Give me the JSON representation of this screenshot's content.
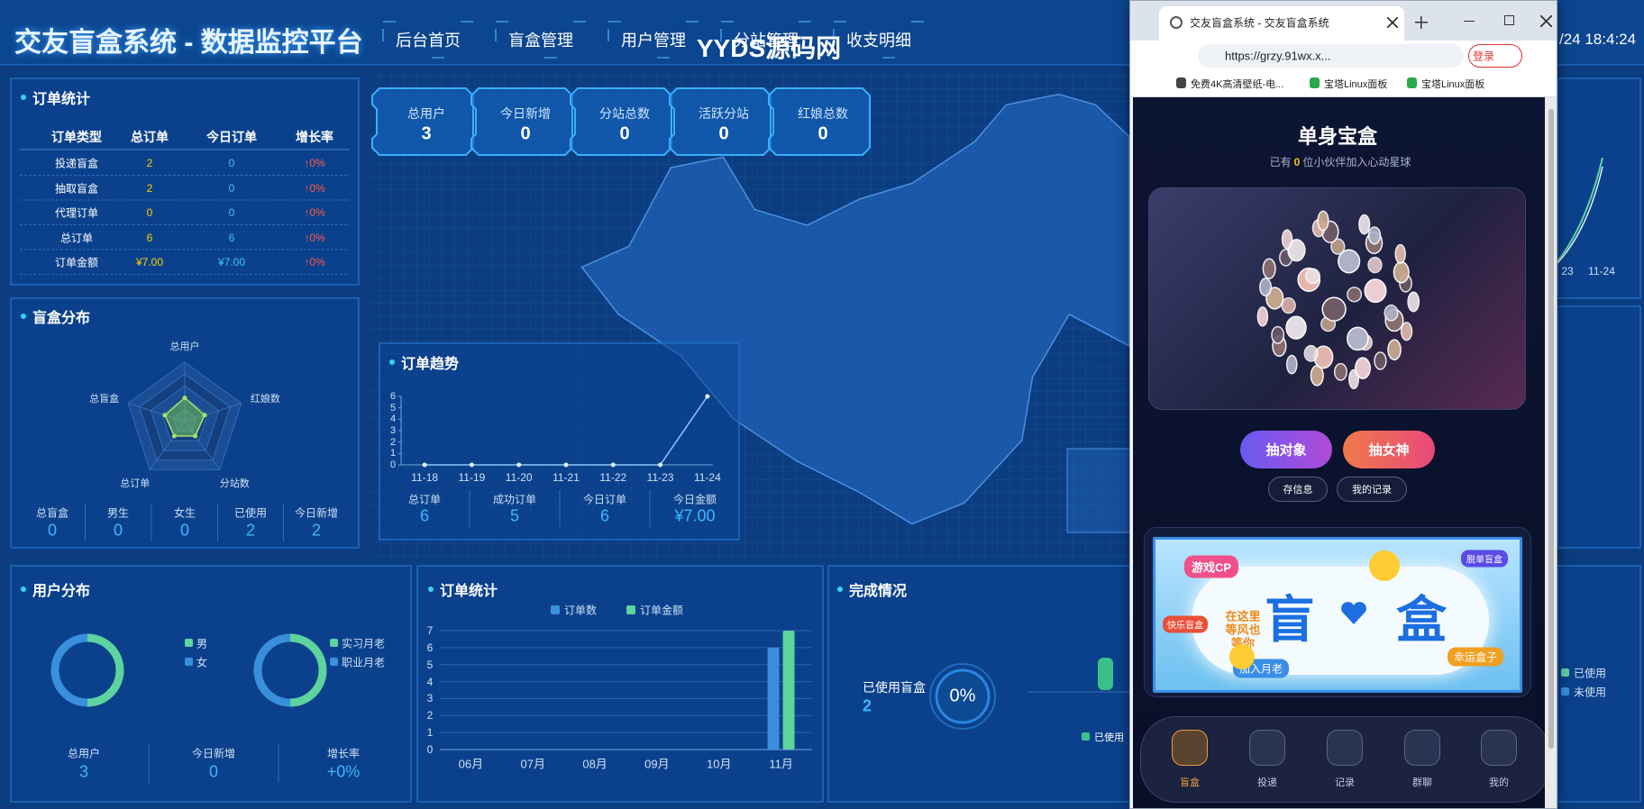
{
  "header": {
    "title": "交友盲盒系统 - 数据监控平台",
    "nav": [
      "后台首页",
      "盲盒管理",
      "用户管理",
      "分站管理",
      "收支明细"
    ],
    "watermark": "YYDS源码网",
    "clock": "/24 18:4:24"
  },
  "order_table": {
    "title": "订单统计",
    "columns": [
      "订单类型",
      "总订单",
      "今日订单",
      "增长率"
    ],
    "rows": [
      [
        "投递盲盒",
        "2",
        "0",
        "↑0%"
      ],
      [
        "抽取盲盒",
        "2",
        "0",
        "↑0%"
      ],
      [
        "代理订单",
        "0",
        "0",
        "↑0%"
      ],
      [
        "总订单",
        "6",
        "6",
        "↑0%"
      ],
      [
        "订单金额",
        "¥7.00",
        "¥7.00",
        "↑0%"
      ]
    ]
  },
  "kpis": [
    {
      "label": "总用户",
      "value": "3"
    },
    {
      "label": "今日新增",
      "value": "0"
    },
    {
      "label": "分站总数",
      "value": "0"
    },
    {
      "label": "活跃分站",
      "value": "0"
    },
    {
      "label": "红娘总数",
      "value": "0"
    }
  ],
  "box_distribution": {
    "title": "盲盒分布",
    "radar": {
      "type": "radar",
      "indicators": [
        "总用户",
        "红娘数",
        "分站数",
        "总订单",
        "总盲盒"
      ],
      "values": [
        4,
        3.5,
        3,
        3,
        3.5
      ],
      "rlim": [
        0,
        10
      ],
      "color": "#a8e06a"
    },
    "stats": [
      {
        "label": "总盲盒",
        "value": "0"
      },
      {
        "label": "男生",
        "value": "0"
      },
      {
        "label": "女生",
        "value": "0"
      },
      {
        "label": "已使用",
        "value": "2"
      },
      {
        "label": "今日新增",
        "value": "2"
      }
    ]
  },
  "order_trend": {
    "title": "订单趋势",
    "chart": {
      "type": "line",
      "categories": [
        "11-18",
        "11-19",
        "11-20",
        "11-21",
        "11-22",
        "11-23",
        "11-24"
      ],
      "values": [
        0,
        0,
        0,
        0,
        0,
        0,
        6
      ],
      "ylim": [
        0,
        6
      ],
      "yticks": [
        0,
        1,
        2,
        3,
        4,
        5,
        6
      ],
      "color": "#8cc8ff"
    },
    "stats": [
      {
        "label": "总订单",
        "value": "6"
      },
      {
        "label": "成功订单",
        "value": "5"
      },
      {
        "label": "今日订单",
        "value": "6"
      },
      {
        "label": "今日金额",
        "value": "¥7.00"
      }
    ]
  },
  "user_distribution": {
    "title": "用户分布",
    "donuts": [
      {
        "type": "pie",
        "series": [
          {
            "name": "男",
            "color": "#5dd39e",
            "value": 50
          },
          {
            "name": "女",
            "color": "#3a8fdc",
            "value": 50
          }
        ]
      },
      {
        "type": "pie",
        "series": [
          {
            "name": "实习月老",
            "color": "#5dd39e",
            "value": 50
          },
          {
            "name": "职业月老",
            "color": "#3a8fdc",
            "value": 50
          }
        ]
      }
    ],
    "stats": [
      {
        "label": "总用户",
        "value": "3"
      },
      {
        "label": "今日新增",
        "value": "0"
      },
      {
        "label": "增长率",
        "value": "+0%"
      }
    ]
  },
  "order_bars": {
    "title": "订单统计",
    "chart": {
      "type": "bar",
      "categories": [
        "06月",
        "07月",
        "08月",
        "09月",
        "10月",
        "11月"
      ],
      "series": [
        {
          "name": "订单数",
          "color": "#3a8fdc",
          "values": [
            0,
            0,
            0,
            0,
            0,
            6
          ]
        },
        {
          "name": "订单金额",
          "color": "#5dd39e",
          "values": [
            0,
            0,
            0,
            0,
            0,
            7
          ]
        }
      ],
      "ylim": [
        0,
        7
      ],
      "yticks": [
        0,
        1,
        2,
        3,
        4,
        5,
        6,
        7
      ],
      "grid": true
    }
  },
  "completion": {
    "title": "完成情况",
    "label": "已使用盲盒",
    "value": "2",
    "gauge": "0%",
    "legend": [
      "已使用"
    ]
  },
  "right_panel": {
    "x_labels": [
      "23",
      "11-24"
    ],
    "legend": [
      "已使用",
      "未使用"
    ]
  },
  "browser": {
    "tab_title": "交友盲盒系统 - 交友盲盒系统",
    "url": "https://grzy.91wx.x...",
    "login": "登录",
    "bookmarks": [
      "免费4K高清壁纸-电...",
      "宝塔Linux面板",
      "宝塔Linux面板"
    ],
    "app": {
      "title": "单身宝盒",
      "subtitle_pre": "已有",
      "subtitle_count": "0",
      "subtitle_post": "位小伙伴加入心动星球",
      "primary_buttons": [
        "抽对象",
        "抽女神"
      ],
      "secondary_buttons": [
        "存信息",
        "我的记录"
      ],
      "banner": {
        "tag_left": "游戏CP",
        "tag_right": "脱单盲盒",
        "tag_small": "快乐盲盒",
        "big_left": "盲",
        "big_right": "盒",
        "slogan": "在这里等风也等你",
        "join": "加入月老",
        "lucky": "幸运盒子"
      },
      "nav": [
        "盲盒",
        "投递",
        "记录",
        "群聊",
        "我的"
      ]
    }
  }
}
